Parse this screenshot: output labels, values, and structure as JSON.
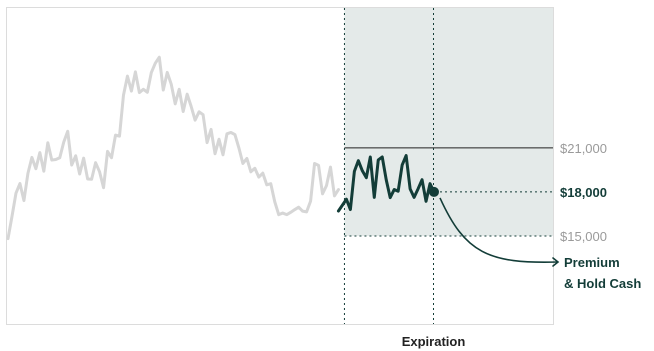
{
  "chart_data": {
    "type": "line",
    "title": "",
    "xlabel": "Expiration",
    "ylabel": "",
    "ylim": [
      9000,
      30600
    ],
    "grid": false,
    "reference_lines": [
      {
        "label": "$21,000",
        "value": 21000
      },
      {
        "label": "$18,000",
        "value": 18000
      },
      {
        "label": "$15,000",
        "value": 15000
      }
    ],
    "callout": "Premium\n& Hold Cash",
    "series": [
      {
        "role": "history",
        "color": "#d6d6d6",
        "x": [
          0,
          2,
          4,
          6,
          8,
          10,
          12,
          14,
          16,
          18,
          20,
          22,
          24,
          26,
          28,
          30,
          32,
          34,
          36,
          38,
          40,
          42,
          44,
          46,
          48,
          50,
          52,
          54,
          56,
          58,
          60,
          62,
          64,
          66,
          68,
          70,
          72,
          74,
          76,
          78,
          80,
          82,
          84,
          86,
          88,
          90,
          92,
          94,
          96,
          98,
          100,
          102,
          104,
          106,
          108,
          110,
          112,
          114,
          116,
          118,
          120,
          122,
          124,
          126,
          128,
          130,
          132,
          134,
          136,
          138,
          140,
          142,
          144,
          146,
          148,
          150,
          152,
          154,
          156,
          158,
          160,
          162,
          164,
          166
        ],
        "values": [
          14820,
          16330,
          17910,
          18570,
          17410,
          19260,
          20350,
          19580,
          20680,
          19410,
          21350,
          20170,
          20210,
          20330,
          21390,
          22130,
          19830,
          20460,
          19220,
          20300,
          18880,
          18860,
          19990,
          19370,
          18290,
          20760,
          20330,
          21870,
          21800,
          24580,
          25890,
          24870,
          26180,
          24770,
          24990,
          24790,
          26130,
          26770,
          27180,
          24940,
          26140,
          25340,
          24000,
          24990,
          23480,
          24660,
          23830,
          22890,
          23460,
          23260,
          21360,
          22260,
          20600,
          21590,
          20530,
          21960,
          22050,
          21910,
          20990,
          19940,
          20280,
          19370,
          19610,
          19010,
          19280,
          18480,
          18560,
          17330,
          16450,
          16560,
          16450,
          16610,
          16790,
          16960,
          16690,
          16640,
          17370,
          19940,
          19810,
          17870,
          18430,
          19690,
          17730,
          18160
        ]
      },
      {
        "role": "forecast",
        "color": "#133d38",
        "x": [
          166,
          168,
          170,
          172,
          174,
          176,
          178,
          180,
          182,
          184,
          186,
          188,
          190,
          192,
          194,
          196,
          198,
          200,
          202,
          204,
          206,
          208,
          210,
          212,
          214
        ],
        "values": [
          16700,
          17100,
          17500,
          16800,
          19400,
          20130,
          19440,
          18970,
          20380,
          17630,
          20180,
          20380,
          18830,
          17610,
          18160,
          18050,
          19830,
          20480,
          18210,
          17630,
          18210,
          18830,
          17360,
          18560,
          18000
        ]
      }
    ],
    "annotations": {
      "price_marker": {
        "x": 214,
        "value": 18000
      }
    }
  }
}
